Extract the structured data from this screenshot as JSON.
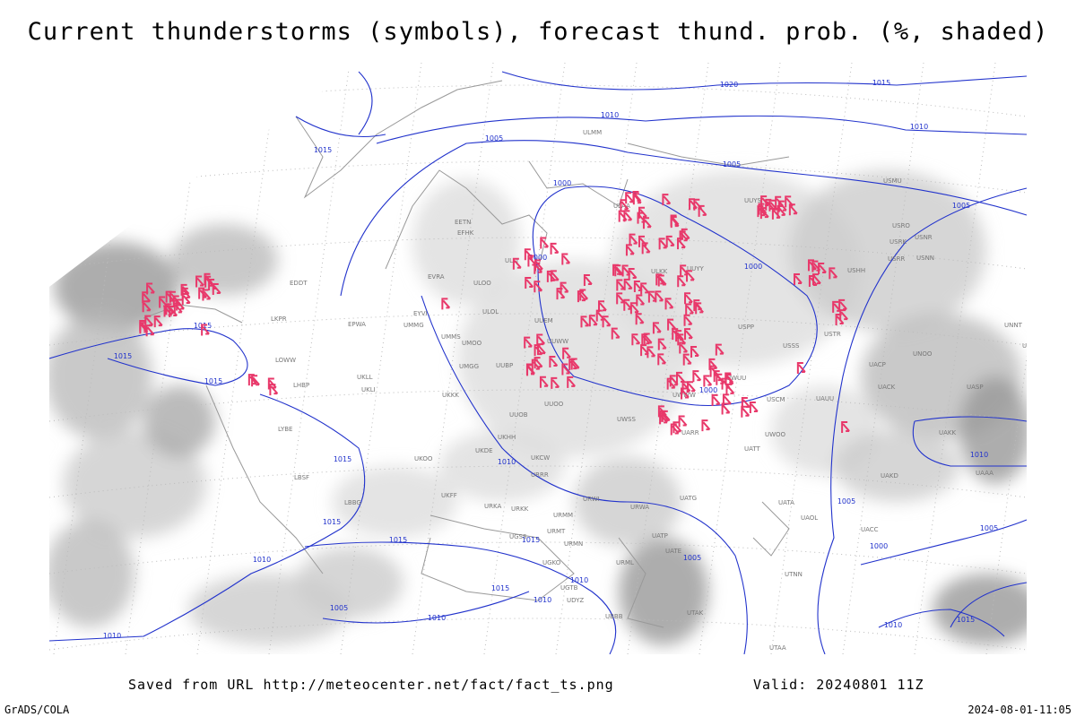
{
  "header": {
    "title": "Current thunderstorms (symbols), forecast thund. prob. (%, shaded)"
  },
  "footer": {
    "saved": "Saved from URL http://meteocenter.net/fact/fact_ts.png",
    "valid": "Valid: 20240801 11Z",
    "software": "GrADS/COLA",
    "timestamp": "2024-08-01-11:05"
  },
  "isobar_labels": [
    "1020",
    "1015",
    "1010",
    "1010",
    "1005",
    "1005",
    "1015",
    "1000",
    "1005",
    "1000",
    "1000",
    "1015",
    "1015",
    "1015",
    "1000",
    "1010",
    "1015",
    "1010",
    "1005",
    "1015",
    "1015",
    "1015",
    "1000",
    "1010",
    "1005",
    "1010",
    "1015",
    "1010",
    "1005",
    "1010",
    "1010",
    "1005",
    "1015",
    "1010"
  ],
  "stations": [
    "UUYS",
    "USMU",
    "USRO",
    "USRK",
    "USNR",
    "USRR",
    "USNN",
    "USHH",
    "ULAA",
    "ULLI",
    "EFHK",
    "EETN",
    "ULOO",
    "EVRA",
    "UMMG",
    "UMMS",
    "UMOO",
    "UUEM",
    "UUWW",
    "ULKK",
    "UUYY",
    "USPP",
    "USSS",
    "USTR",
    "UNOO",
    "UACP",
    "UACK",
    "UASP",
    "UAUU",
    "USCM",
    "UWUU",
    "UWWW",
    "UWOO",
    "UATT",
    "UUOB",
    "UUOO",
    "UKKK",
    "UKLL",
    "UKLI",
    "UMGG",
    "UUBP",
    "UKOO",
    "UKHH",
    "UKDE",
    "UKCW",
    "URRR",
    "URWI",
    "URWA",
    "UATG",
    "UATA",
    "UAOL",
    "UACC",
    "UAKD",
    "UAKK",
    "UARR",
    "UWSS",
    "UAAA",
    "EPWA",
    "EYVI",
    "EDDT",
    "LKPR",
    "LOWW",
    "LHBP",
    "LYBE",
    "LBSF",
    "LBBG",
    "UKFF",
    "URKA",
    "URKK",
    "URMM",
    "URMN",
    "URMT",
    "UGSS",
    "UGKO",
    "UGTB",
    "UBBB",
    "UDYZ",
    "UTNN",
    "UTAA",
    "UTAK",
    "UATE",
    "UATP",
    "URML",
    "ULMM",
    "ULOL",
    "UNNT",
    "UNBB"
  ]
}
